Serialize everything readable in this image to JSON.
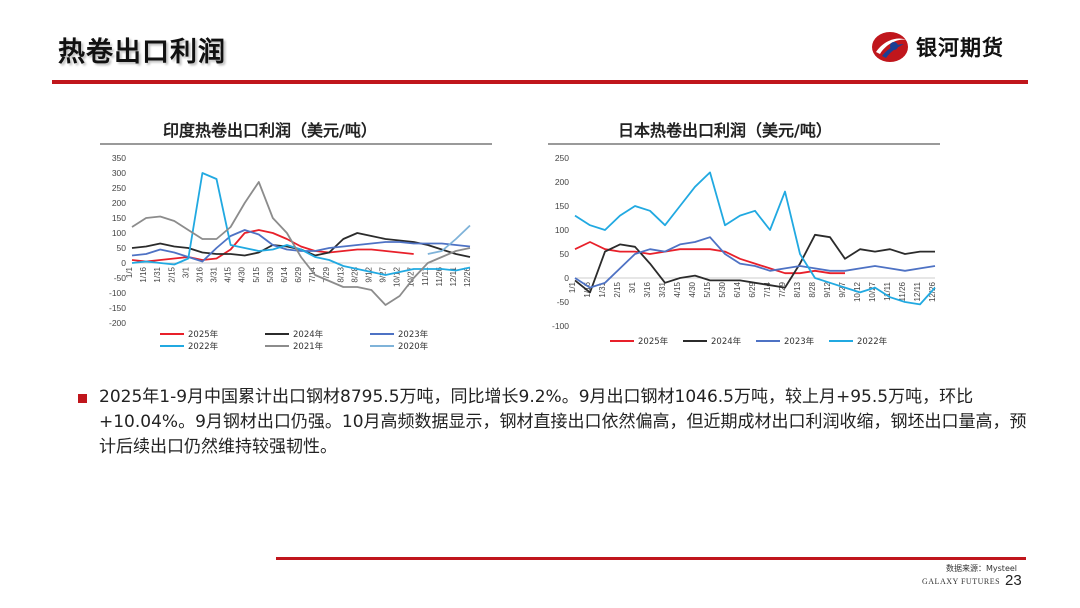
{
  "slide": {
    "title": "热卷出口利润",
    "brand": "银河期货",
    "footer_source": "数据来源：Mysteel",
    "footer_brand": "GALAXY FUTURES",
    "page_number": "23",
    "accent_color": "#c0161c",
    "logo_icon": "galaxy-logo-icon"
  },
  "bullet": {
    "text": "2025年1-9月中国累计出口钢材8795.5万吨，同比增长9.2%。9月出口钢材1046.5万吨，较上月+95.5万吨，环比+10.04%。9月钢材出口仍强。10月高频数据显示，钢材直接出口依然偏高，但近期成材出口利润收缩，钢坯出口量高，预计后续出口仍然维持较强韧性。"
  },
  "chart_data": [
    {
      "type": "line",
      "title": "印度热卷出口利润（美元/吨）",
      "ylim": [
        -200,
        350
      ],
      "yticks": [
        350,
        300,
        250,
        200,
        150,
        100,
        50,
        0,
        -50,
        -100,
        -150,
        -200
      ],
      "categories": [
        "1/1",
        "1/16",
        "1/31",
        "2/15",
        "3/1",
        "3/16",
        "3/31",
        "4/15",
        "4/30",
        "5/15",
        "5/30",
        "6/14",
        "6/29",
        "7/14",
        "7/29",
        "8/13",
        "8/28",
        "9/12",
        "9/27",
        "10/12",
        "10/27",
        "11/11",
        "11/26",
        "12/11",
        "12/26"
      ],
      "legend": [
        "2025年",
        "2024年",
        "2023年",
        "2022年",
        "2021年",
        "2020年"
      ],
      "series": [
        {
          "name": "2025年",
          "color": "#e8202a",
          "values": [
            10,
            5,
            10,
            15,
            20,
            10,
            15,
            45,
            100,
            110,
            100,
            80,
            55,
            40,
            35,
            40,
            45,
            45,
            40,
            35,
            30,
            null,
            null,
            null,
            null
          ]
        },
        {
          "name": "2024年",
          "color": "#2b2b2b",
          "values": [
            50,
            55,
            65,
            55,
            50,
            35,
            30,
            30,
            25,
            35,
            60,
            55,
            45,
            25,
            35,
            80,
            100,
            90,
            80,
            75,
            70,
            60,
            45,
            30,
            20
          ]
        },
        {
          "name": "2023年",
          "color": "#4e72c4",
          "values": [
            25,
            30,
            45,
            35,
            20,
            5,
            50,
            90,
            110,
            95,
            60,
            45,
            40,
            40,
            50,
            55,
            60,
            65,
            70,
            70,
            65,
            65,
            65,
            60,
            55
          ]
        },
        {
          "name": "2022年",
          "color": "#21a9e1",
          "values": [
            0,
            5,
            0,
            -5,
            15,
            300,
            280,
            60,
            50,
            40,
            45,
            60,
            45,
            20,
            10,
            -10,
            -20,
            -30,
            -40,
            -30,
            -20,
            -20,
            -20,
            -25,
            -15
          ]
        },
        {
          "name": "2021年",
          "color": "#8c8c8c",
          "values": [
            120,
            150,
            155,
            140,
            110,
            80,
            80,
            120,
            200,
            270,
            150,
            100,
            20,
            -40,
            -60,
            -80,
            -80,
            -90,
            -140,
            -110,
            -50,
            0,
            20,
            40,
            50
          ]
        },
        {
          "name": "2020年",
          "color": "#7fb3d9",
          "values": [
            null,
            null,
            null,
            null,
            null,
            null,
            null,
            null,
            null,
            null,
            null,
            null,
            null,
            null,
            null,
            null,
            null,
            null,
            null,
            null,
            null,
            30,
            40,
            80,
            125
          ]
        }
      ]
    },
    {
      "type": "line",
      "title": "日本热卷出口利润（美元/吨）",
      "ylim": [
        -100,
        250
      ],
      "yticks": [
        250,
        200,
        150,
        100,
        50,
        0,
        -50,
        -100
      ],
      "categories": [
        "1/1",
        "1/16",
        "1/31",
        "2/15",
        "3/1",
        "3/16",
        "3/31",
        "4/15",
        "4/30",
        "5/15",
        "5/30",
        "6/14",
        "6/29",
        "7/14",
        "7/29",
        "8/13",
        "8/28",
        "9/12",
        "9/27",
        "10/12",
        "10/27",
        "11/11",
        "11/26",
        "12/11",
        "12/26"
      ],
      "legend": [
        "2025年",
        "2024年",
        "2023年",
        "2022年"
      ],
      "series": [
        {
          "name": "2025年",
          "color": "#e8202a",
          "values": [
            60,
            75,
            60,
            55,
            55,
            50,
            55,
            60,
            60,
            60,
            55,
            40,
            30,
            20,
            10,
            10,
            15,
            10,
            10,
            null,
            null,
            null,
            null,
            null,
            null
          ]
        },
        {
          "name": "2024年",
          "color": "#2b2b2b",
          "values": [
            -5,
            -30,
            55,
            70,
            65,
            30,
            -10,
            0,
            5,
            -5,
            -5,
            -5,
            -10,
            -15,
            -20,
            30,
            90,
            85,
            40,
            60,
            55,
            60,
            50,
            55,
            55
          ]
        },
        {
          "name": "2023年",
          "color": "#4e72c4",
          "values": [
            0,
            -20,
            -10,
            20,
            50,
            60,
            55,
            70,
            75,
            85,
            50,
            30,
            25,
            15,
            20,
            25,
            20,
            15,
            15,
            20,
            25,
            20,
            15,
            20,
            25
          ]
        },
        {
          "name": "2022年",
          "color": "#21a9e1",
          "values": [
            130,
            110,
            100,
            130,
            150,
            140,
            110,
            150,
            190,
            220,
            110,
            130,
            140,
            100,
            180,
            50,
            0,
            -10,
            -20,
            -30,
            -20,
            -40,
            -50,
            -55,
            -20
          ]
        }
      ]
    }
  ]
}
